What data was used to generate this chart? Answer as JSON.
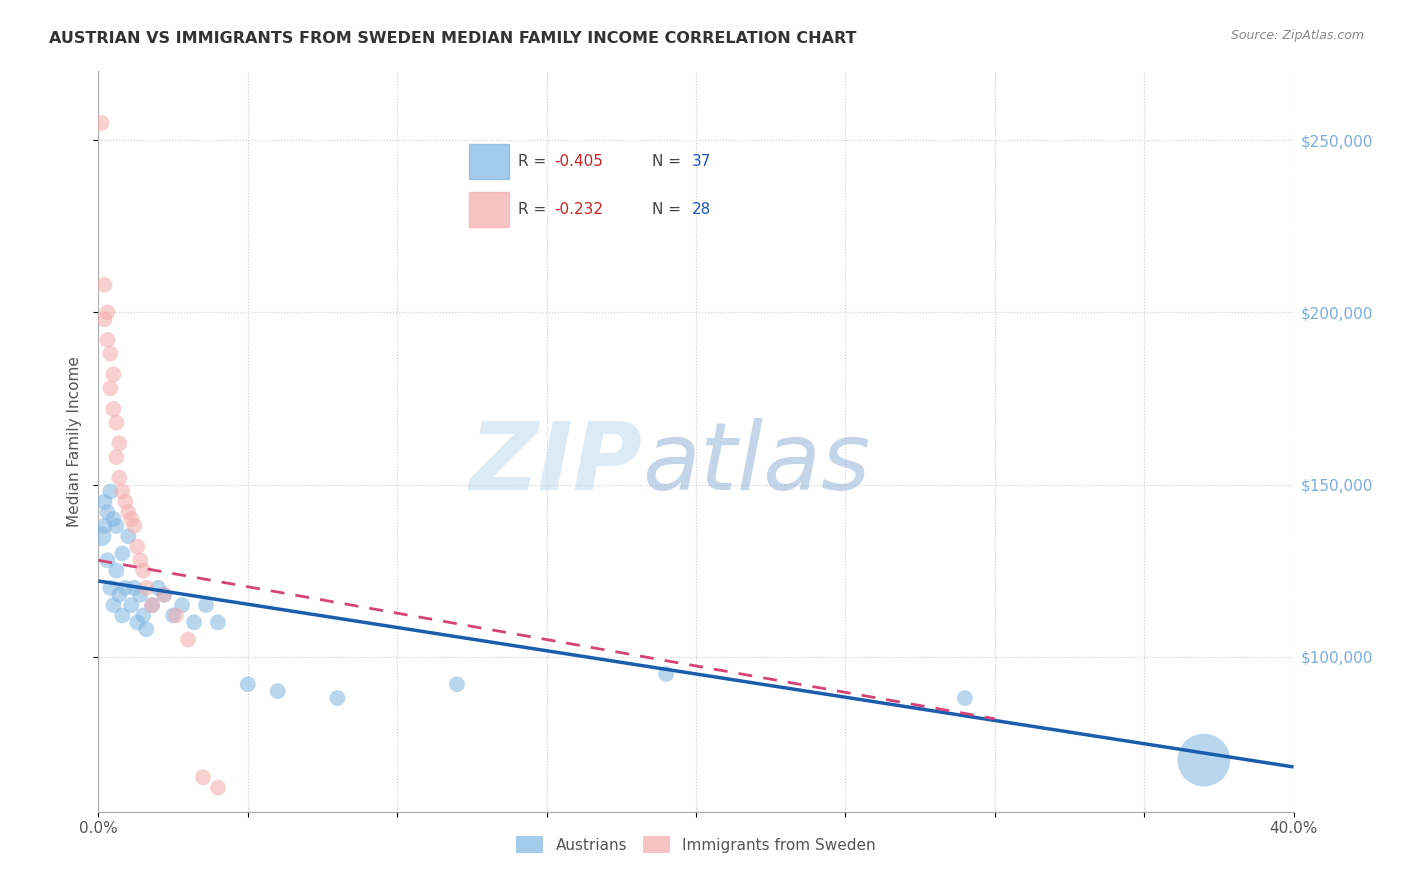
{
  "title": "AUSTRIAN VS IMMIGRANTS FROM SWEDEN MEDIAN FAMILY INCOME CORRELATION CHART",
  "source": "Source: ZipAtlas.com",
  "ylabel": "Median Family Income",
  "watermark_zip": "ZIP",
  "watermark_atlas": "atlas",
  "legend_r1": "R = -0.405",
  "legend_n1": "N = 37",
  "legend_r2": "R = -0.232",
  "legend_n2": "N = 28",
  "blue_color": "#7EB5E0",
  "pink_color": "#F5AAAA",
  "blue_line_color": "#1A5DAD",
  "pink_line_color": "#D44477",
  "austrians_x": [
    0.001,
    0.002,
    0.002,
    0.003,
    0.003,
    0.004,
    0.004,
    0.005,
    0.005,
    0.006,
    0.006,
    0.007,
    0.008,
    0.008,
    0.009,
    0.01,
    0.011,
    0.012,
    0.013,
    0.014,
    0.015,
    0.016,
    0.018,
    0.02,
    0.022,
    0.025,
    0.028,
    0.032,
    0.036,
    0.04,
    0.05,
    0.06,
    0.08,
    0.12,
    0.19,
    0.29,
    0.37
  ],
  "austrians_y": [
    135000,
    145000,
    138000,
    142000,
    128000,
    148000,
    120000,
    140000,
    115000,
    138000,
    125000,
    118000,
    130000,
    112000,
    120000,
    135000,
    115000,
    120000,
    110000,
    118000,
    112000,
    108000,
    115000,
    120000,
    118000,
    112000,
    115000,
    110000,
    115000,
    110000,
    92000,
    90000,
    88000,
    92000,
    95000,
    88000,
    70000
  ],
  "austrians_size": [
    15,
    12,
    12,
    12,
    12,
    12,
    12,
    12,
    12,
    12,
    12,
    12,
    12,
    12,
    12,
    12,
    12,
    12,
    12,
    12,
    12,
    12,
    12,
    12,
    12,
    12,
    12,
    12,
    12,
    12,
    12,
    12,
    12,
    12,
    12,
    12,
    40
  ],
  "sweden_x": [
    0.001,
    0.002,
    0.002,
    0.003,
    0.003,
    0.004,
    0.004,
    0.005,
    0.005,
    0.006,
    0.006,
    0.007,
    0.007,
    0.008,
    0.009,
    0.01,
    0.011,
    0.012,
    0.013,
    0.014,
    0.015,
    0.016,
    0.018,
    0.022,
    0.026,
    0.03,
    0.035,
    0.04
  ],
  "sweden_y": [
    255000,
    198000,
    208000,
    200000,
    192000,
    188000,
    178000,
    182000,
    172000,
    168000,
    158000,
    162000,
    152000,
    148000,
    145000,
    142000,
    140000,
    138000,
    132000,
    128000,
    125000,
    120000,
    115000,
    118000,
    112000,
    105000,
    65000,
    62000
  ],
  "sweden_size": [
    12,
    12,
    12,
    12,
    12,
    12,
    12,
    12,
    12,
    12,
    12,
    12,
    12,
    12,
    12,
    12,
    12,
    12,
    12,
    12,
    12,
    12,
    12,
    12,
    12,
    12,
    12,
    12
  ],
  "xlim": [
    0.0,
    0.4
  ],
  "ylim": [
    55000,
    270000
  ],
  "yticks": [
    100000,
    150000,
    200000,
    250000
  ],
  "ytick_labels": [
    "$100,000",
    "$150,000",
    "$200,000",
    "$250,000"
  ],
  "blue_line_x": [
    0.0,
    0.4
  ],
  "blue_line_y": [
    122000,
    68000
  ],
  "pink_line_x": [
    0.0,
    0.3
  ],
  "pink_line_y": [
    128000,
    82000
  ]
}
